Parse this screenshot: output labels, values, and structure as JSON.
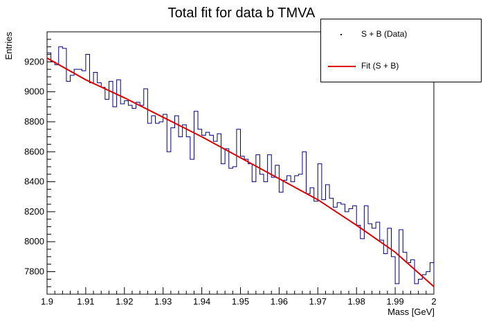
{
  "chart_data": {
    "type": "line",
    "title": "Total fit for data b TMVA",
    "xlabel": "Mass [GeV]",
    "ylabel": "Entries",
    "xlim": [
      1.9,
      2.0
    ],
    "ylim": [
      7650,
      9400
    ],
    "x_ticks": [
      "1.9",
      "1.91",
      "1.92",
      "1.93",
      "1.94",
      "1.95",
      "1.96",
      "1.97",
      "1.98",
      "1.99",
      "2"
    ],
    "y_ticks": [
      "7800",
      "8000",
      "8200",
      "8400",
      "8600",
      "8800",
      "9000",
      "9200"
    ],
    "legend": {
      "placement": "top-right",
      "entries": [
        {
          "label": "S + B (Data)",
          "symbol": "marker",
          "color": "#000000"
        },
        {
          "label": "Fit (S + B)",
          "symbol": "line",
          "color": "#e00000"
        }
      ]
    },
    "series": [
      {
        "name": "S + B (Data)",
        "kind": "histogram",
        "color": "#000080",
        "bin_edges_start": 1.9,
        "bin_width": 0.001,
        "values": [
          9260,
          9200,
          9180,
          9300,
          9290,
          9070,
          9110,
          9150,
          9150,
          9140,
          9250,
          9060,
          9130,
          9060,
          9030,
          8950,
          9070,
          8900,
          9080,
          8920,
          8940,
          8910,
          8890,
          8930,
          8910,
          9020,
          8790,
          8840,
          8790,
          8800,
          8850,
          8600,
          8760,
          8840,
          8700,
          8780,
          8700,
          8550,
          8870,
          8750,
          8710,
          8730,
          8710,
          8670,
          8720,
          8520,
          8620,
          8490,
          8500,
          8750,
          8570,
          8550,
          8520,
          8400,
          8580,
          8450,
          8400,
          8580,
          8430,
          8510,
          8330,
          8410,
          8440,
          8400,
          8440,
          8450,
          8600,
          8320,
          8360,
          8270,
          8520,
          8280,
          8380,
          8290,
          8230,
          8260,
          8250,
          8200,
          8220,
          8240,
          8110,
          8020,
          8240,
          8120,
          8090,
          8130,
          8010,
          7920,
          8090,
          7900,
          7720,
          8080,
          7930,
          7860,
          7880,
          7720,
          7750,
          7780,
          7800,
          7860,
          7760
        ],
        "xs_note": ""
      },
      {
        "name": "Fit (S + B)",
        "kind": "curve",
        "color": "#e00000",
        "x": [
          1.9,
          1.91,
          1.92,
          1.93,
          1.94,
          1.95,
          1.96,
          1.97,
          1.98,
          1.99,
          2.0
        ],
        "y": [
          9225,
          9080,
          8960,
          8830,
          8700,
          8560,
          8420,
          8280,
          8110,
          7930,
          7700
        ]
      }
    ]
  }
}
